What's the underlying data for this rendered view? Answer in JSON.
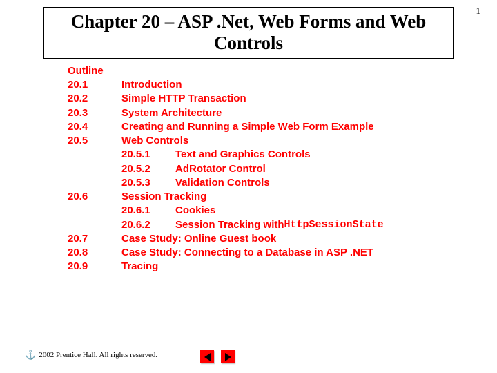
{
  "page_number": "1",
  "title": "Chapter 20 – ASP .Net, Web Forms and Web Controls",
  "outline_header": "Outline",
  "items": [
    {
      "num": "20.1",
      "label": "Introduction",
      "sub": false
    },
    {
      "num": "20.2",
      "label": "Simple HTTP Transaction",
      "sub": false
    },
    {
      "num": "20.3",
      "label": "System Architecture",
      "sub": false
    },
    {
      "num": "20.4",
      "label": "Creating and Running a Simple Web Form Example",
      "sub": false
    },
    {
      "num": "20.5",
      "label": "Web Controls",
      "sub": false
    },
    {
      "num": "20.5.1",
      "label": "Text and Graphics Controls",
      "sub": true
    },
    {
      "num": "20.5.2",
      "label": "AdRotator Control",
      "sub": true
    },
    {
      "num": "20.5.3",
      "label": "Validation Controls",
      "sub": true
    },
    {
      "num": "20.6",
      "label": "Session Tracking",
      "sub": false
    },
    {
      "num": "20.6.1",
      "label": "Cookies",
      "sub": true
    },
    {
      "num": "20.6.2",
      "label": "Session Tracking with ",
      "mono_suffix": "HttpSessionState",
      "sub": true
    },
    {
      "num": "20.7",
      "label": "Case Study: Online Guest book",
      "sub": false
    },
    {
      "num": "20.8",
      "label": "Case Study: Connecting to a Database in ASP .NET",
      "sub": false
    },
    {
      "num": "20.9",
      "label": "Tracing",
      "sub": false
    }
  ],
  "copyright": "2002 Prentice Hall.  All rights reserved.",
  "colors": {
    "outline_text": "#ff0000",
    "title_text": "#000000",
    "background": "#ffffff",
    "nav_button": "#ff0000",
    "nav_arrow": "#000000"
  },
  "fonts": {
    "title_family": "Times New Roman",
    "title_size_pt": 20,
    "outline_family": "Arial",
    "outline_size_pt": 11,
    "mono_family": "Courier New"
  }
}
